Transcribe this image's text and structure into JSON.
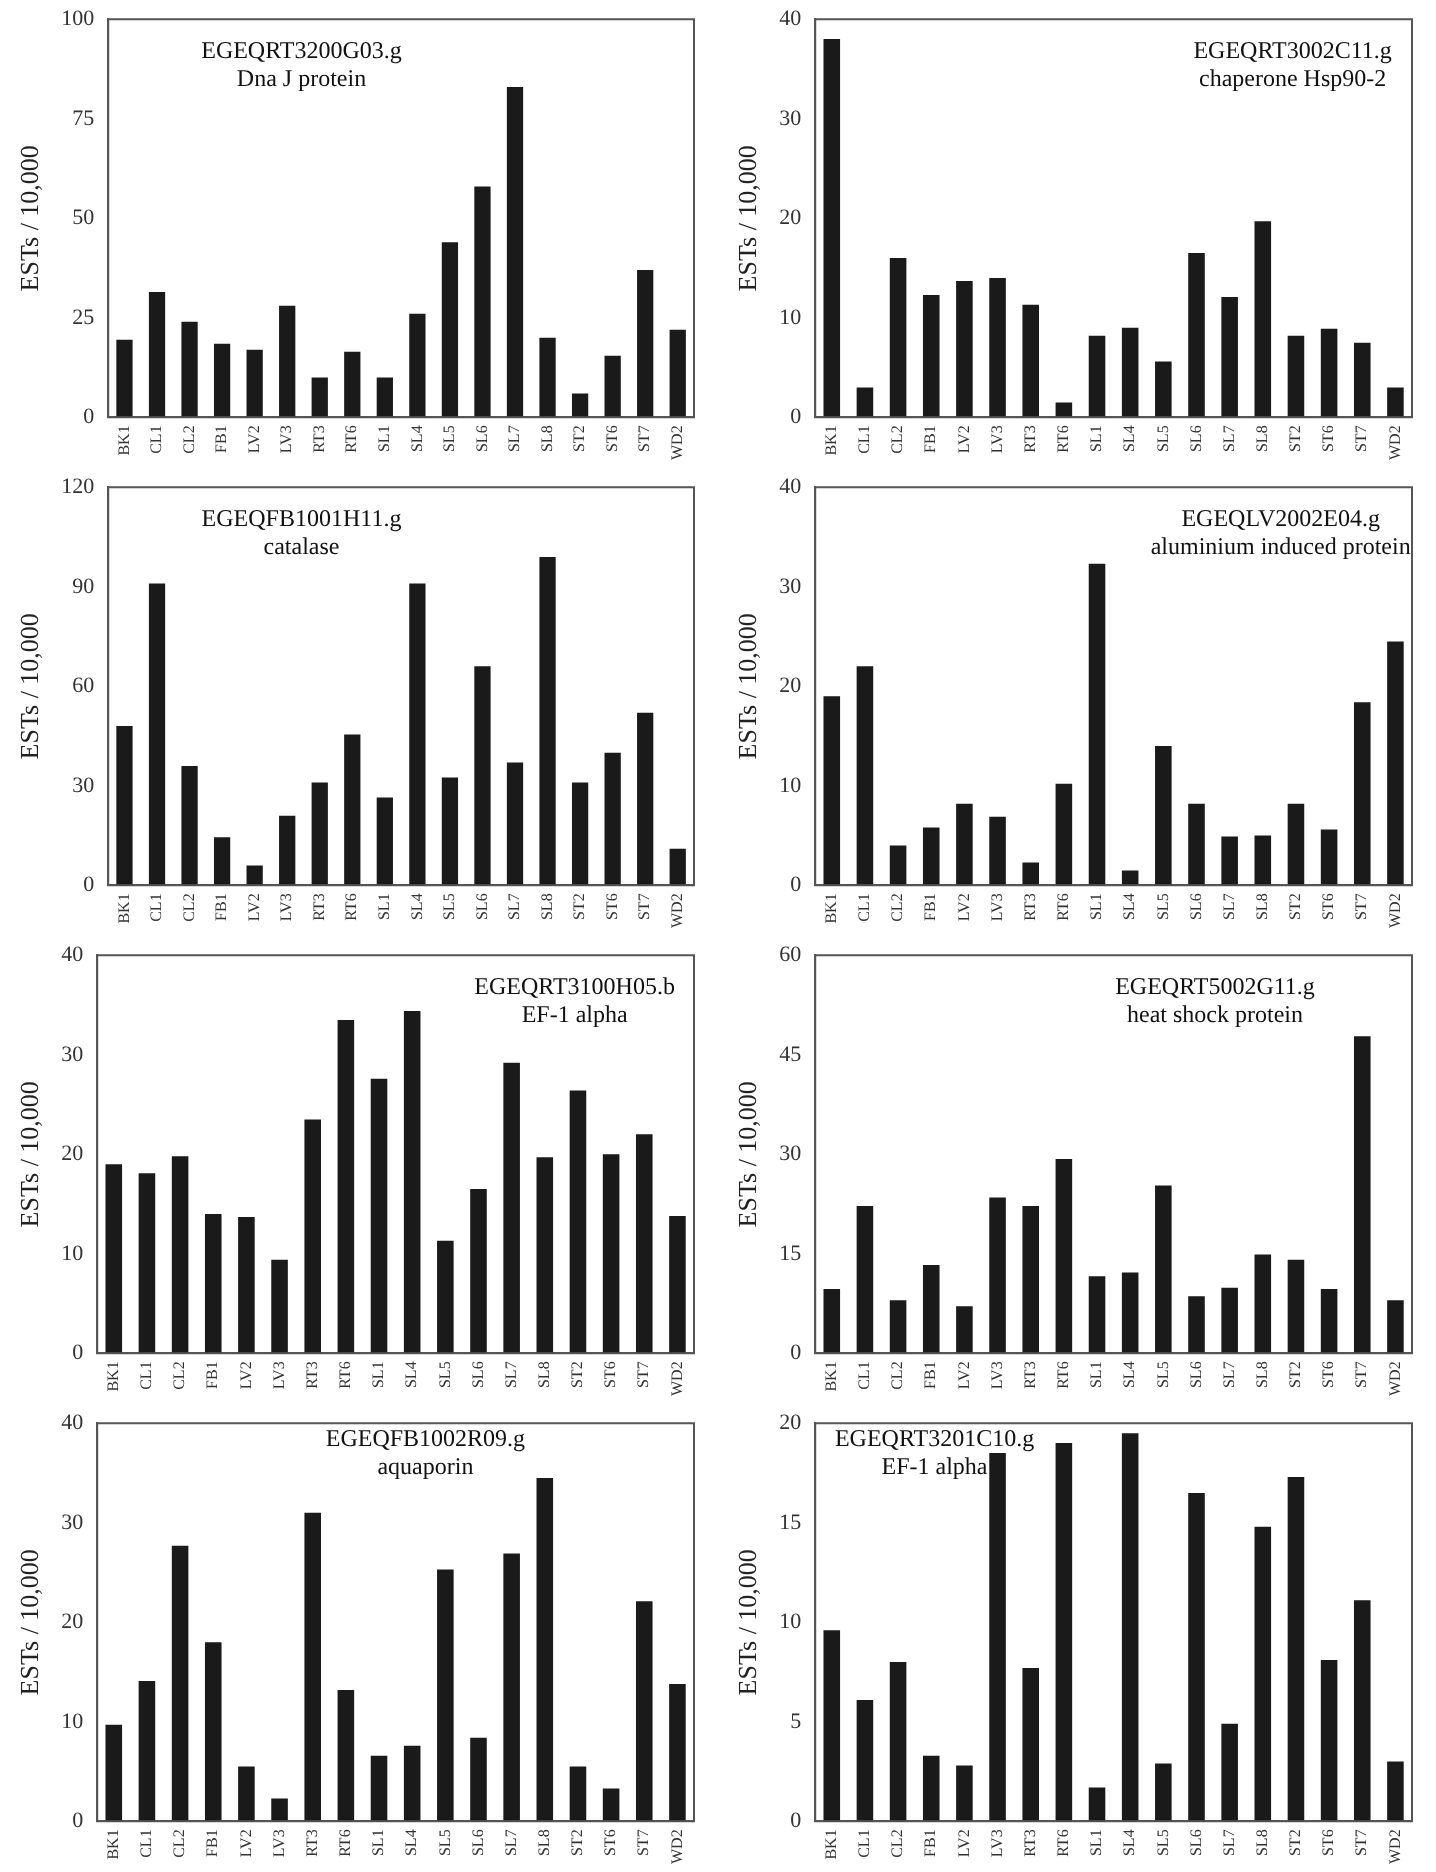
{
  "chart_data": [
    {
      "type": "bar",
      "title": "EGEQRT3200G03.g",
      "subtitle": "Dna J protein",
      "ylabel": "ESTs / 10,000",
      "color": "#1a1a1a",
      "ylim": [
        0,
        100
      ],
      "yticks": [
        0,
        25,
        50,
        75,
        100
      ],
      "categories": [
        "BK1",
        "CL1",
        "CL2",
        "FB1",
        "LV2",
        "LV3",
        "RT3",
        "RT6",
        "SL1",
        "SL4",
        "SL5",
        "SL6",
        "SL7",
        "SL8",
        "ST2",
        "ST6",
        "ST7",
        "WD2"
      ],
      "values": [
        19.5,
        31.5,
        24,
        18.5,
        17,
        28,
        10,
        16.5,
        10,
        26,
        44,
        58,
        83,
        20,
        6,
        15.5,
        37,
        22
      ]
    },
    {
      "type": "bar",
      "title": "EGEQRT3002C11.g",
      "subtitle": "chaperone Hsp90-2",
      "ylabel": "ESTs / 10,000",
      "color": "#1a1a1a",
      "ylim": [
        0,
        40
      ],
      "yticks": [
        0,
        10,
        20,
        30,
        40
      ],
      "categories": [
        "BK1",
        "CL1",
        "CL2",
        "FB1",
        "LV2",
        "LV3",
        "RT3",
        "RT6",
        "SL1",
        "SL4",
        "SL5",
        "SL6",
        "SL7",
        "SL8",
        "ST2",
        "ST6",
        "ST7",
        "WD2"
      ],
      "values": [
        38,
        3,
        16,
        12.3,
        13.7,
        14,
        11.3,
        1.5,
        8.2,
        9,
        5.6,
        16.5,
        12.1,
        19.7,
        8.2,
        8.9,
        7.5,
        3
      ]
    },
    {
      "type": "bar",
      "title": "EGEQFB1001H11.g",
      "subtitle": "catalase",
      "ylabel": "ESTs / 10,000",
      "color": "#1a1a1a",
      "ylim": [
        0,
        120
      ],
      "yticks": [
        0,
        30,
        60,
        90,
        120
      ],
      "categories": [
        "BK1",
        "CL1",
        "CL2",
        "FB1",
        "LV2",
        "LV3",
        "RT3",
        "RT6",
        "SL1",
        "SL4",
        "SL5",
        "SL6",
        "SL7",
        "SL8",
        "ST2",
        "ST6",
        "ST7",
        "WD2"
      ],
      "values": [
        48,
        91,
        36,
        14.5,
        6,
        21,
        31,
        45.5,
        26.5,
        91,
        32.5,
        66,
        37,
        99,
        31,
        40,
        52,
        11
      ]
    },
    {
      "type": "bar",
      "title": "EGEQLV2002E04.g",
      "subtitle": "aluminium induced protein",
      "ylabel": "ESTs / 10,000",
      "color": "#1a1a1a",
      "ylim": [
        0,
        40
      ],
      "yticks": [
        0,
        10,
        20,
        30,
        40
      ],
      "categories": [
        "BK1",
        "CL1",
        "CL2",
        "FB1",
        "LV2",
        "LV3",
        "RT3",
        "RT6",
        "SL1",
        "SL4",
        "SL5",
        "SL6",
        "SL7",
        "SL8",
        "ST2",
        "ST6",
        "ST7",
        "WD2"
      ],
      "values": [
        19,
        22,
        4,
        5.8,
        8.2,
        6.9,
        2.3,
        10.2,
        32.3,
        1.5,
        14,
        8.2,
        4.9,
        5,
        8.2,
        5.6,
        18.4,
        24.5
      ]
    },
    {
      "type": "bar",
      "title": "EGEQRT3100H05.b",
      "subtitle": "EF-1 alpha",
      "ylabel": "ESTs / 10,000",
      "color": "#1a1a1a",
      "ylim": [
        0,
        40
      ],
      "yticks": [
        0,
        10,
        20,
        30,
        40
      ],
      "categories": [
        "BK1",
        "CL1",
        "CL2",
        "FB1",
        "LV2",
        "LV3",
        "RT3",
        "RT6",
        "SL1",
        "SL4",
        "SL5",
        "SL6",
        "SL7",
        "SL8",
        "ST2",
        "ST6",
        "ST7",
        "WD2"
      ],
      "values": [
        19,
        18.1,
        19.8,
        14,
        13.7,
        9.4,
        23.5,
        33.5,
        27.6,
        34.4,
        11.3,
        16.5,
        29.2,
        19.7,
        26.4,
        20,
        22,
        13.8
      ]
    },
    {
      "type": "bar",
      "title": "EGEQRT5002G11.g",
      "subtitle": "heat shock protein",
      "ylabel": "ESTs / 10,000",
      "color": "#1a1a1a",
      "ylim": [
        0,
        60
      ],
      "yticks": [
        0,
        15,
        30,
        45,
        60
      ],
      "categories": [
        "BK1",
        "CL1",
        "CL2",
        "FB1",
        "LV2",
        "LV3",
        "RT3",
        "RT6",
        "SL1",
        "SL4",
        "SL5",
        "SL6",
        "SL7",
        "SL8",
        "ST2",
        "ST6",
        "ST7",
        "WD2"
      ],
      "values": [
        9.7,
        22.2,
        8,
        13.3,
        7.1,
        23.5,
        22.2,
        29.3,
        11.6,
        12.2,
        25.3,
        8.6,
        9.9,
        14.9,
        14.1,
        9.7,
        47.8,
        8
      ]
    },
    {
      "type": "bar",
      "title": "EGEQFB1002R09.g",
      "subtitle": "aquaporin",
      "ylabel": "ESTs / 10,000",
      "color": "#1a1a1a",
      "ylim": [
        0,
        40
      ],
      "yticks": [
        0,
        10,
        20,
        30,
        40
      ],
      "categories": [
        "BK1",
        "CL1",
        "CL2",
        "FB1",
        "LV2",
        "LV3",
        "RT3",
        "RT6",
        "SL1",
        "SL4",
        "SL5",
        "SL6",
        "SL7",
        "SL8",
        "ST2",
        "ST6",
        "ST7",
        "WD2"
      ],
      "values": [
        9.7,
        14.1,
        27.7,
        18,
        5.5,
        2.3,
        31,
        13.2,
        6.6,
        7.6,
        25.3,
        8.4,
        26.9,
        34.5,
        5.5,
        3.3,
        22.1,
        13.8
      ]
    },
    {
      "type": "bar",
      "title": "EGEQRT3201C10.g",
      "subtitle": "EF-1 alpha",
      "ylabel": "ESTs / 10,000",
      "color": "#1a1a1a",
      "ylim": [
        0,
        20
      ],
      "yticks": [
        0,
        5,
        10,
        15,
        20
      ],
      "categories": [
        "BK1",
        "CL1",
        "CL2",
        "FB1",
        "LV2",
        "LV3",
        "RT3",
        "RT6",
        "SL1",
        "SL4",
        "SL5",
        "SL6",
        "SL7",
        "SL8",
        "ST2",
        "ST6",
        "ST7",
        "WD2"
      ],
      "values": [
        9.6,
        6.1,
        8,
        3.3,
        2.8,
        18.5,
        7.7,
        19,
        1.7,
        19.5,
        2.9,
        16.5,
        4.9,
        14.8,
        17.3,
        8.1,
        11.1,
        3
      ]
    }
  ]
}
